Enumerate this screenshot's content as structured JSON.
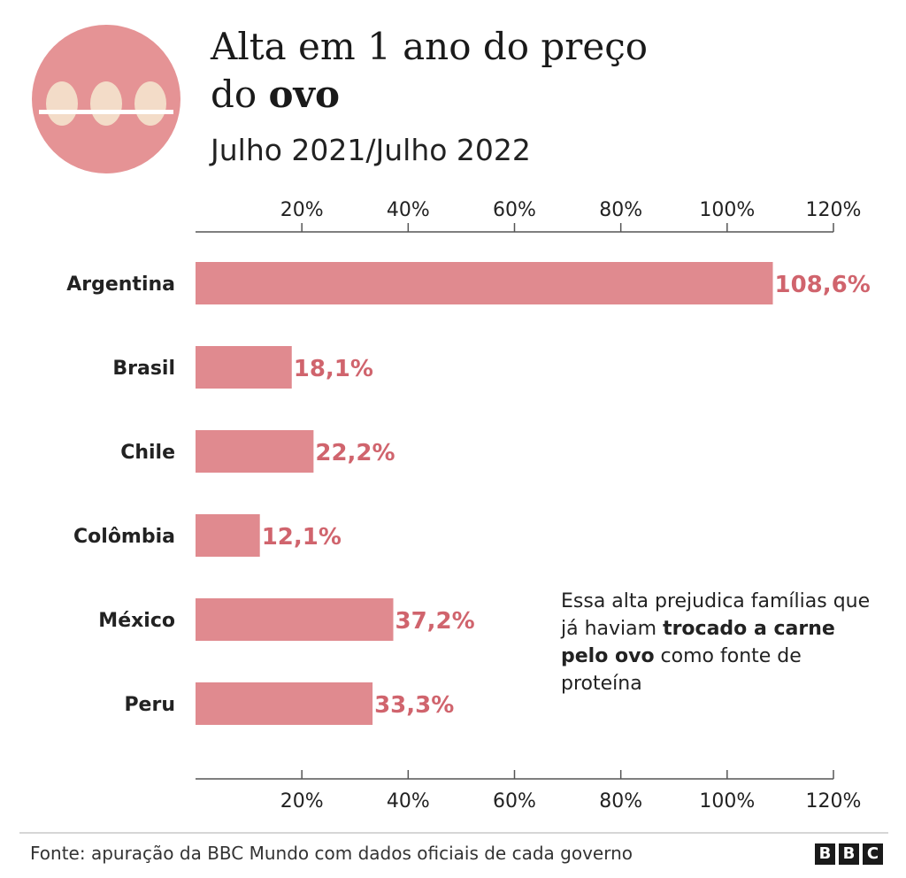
{
  "header": {
    "title_part1": "Alta em 1 ano do preço",
    "title_part2_plain": "do ",
    "title_part2_bold": "ovo",
    "subtitle": "Julho 2021/Julho 2022"
  },
  "icon": {
    "name": "egg-tray-icon",
    "circle_color": "#e59395",
    "egg_color": "#f3dcc8",
    "tray_color": "#ffffff"
  },
  "chart_data": {
    "type": "bar",
    "orientation": "horizontal",
    "categories": [
      "Argentina",
      "Brasil",
      "Chile",
      "Colômbia",
      "México",
      "Peru"
    ],
    "values": [
      108.6,
      18.1,
      22.2,
      12.1,
      37.2,
      33.3
    ],
    "value_labels": [
      "108,6%",
      "18,1%",
      "22,2%",
      "12,1%",
      "37,2%",
      "33,3%"
    ],
    "xlim": [
      0,
      120
    ],
    "ticks": [
      20,
      40,
      60,
      80,
      100,
      120
    ],
    "tick_labels": [
      "20%",
      "40%",
      "60%",
      "80%",
      "100%",
      "120%"
    ],
    "axis_top": true,
    "axis_bottom": true,
    "grid": false,
    "bar_color": "#e08a8f",
    "label_color": "#d0646d"
  },
  "note": {
    "part1": "Essa alta prejudica famílias que já haviam ",
    "bold": "trocado a carne pelo ovo",
    "part2": " como fonte de proteína"
  },
  "footer": {
    "source": "Fonte: apuração da BBC Mundo com dados oficiais de cada governo",
    "logo_letters": [
      "B",
      "B",
      "C"
    ]
  }
}
